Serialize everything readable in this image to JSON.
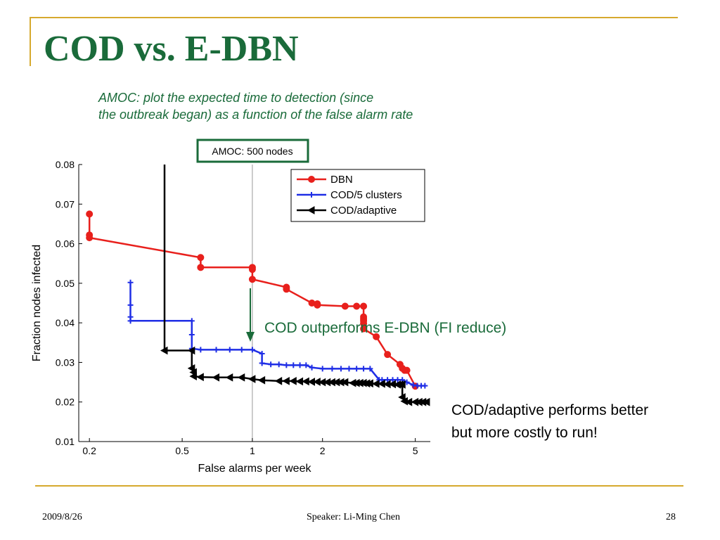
{
  "slide": {
    "title": "COD vs. E-DBN",
    "subtitle_line1": "AMOC: plot the expected time to detection (since",
    "subtitle_line2": "the outbreak began) as a function of the false alarm rate",
    "annotation_green": "COD outperforms E-DBN (FI reduce)",
    "annotation_black_line1": "COD/adaptive performs better",
    "annotation_black_line2": "but more costly to run!",
    "footer_date": "2009/8/26",
    "footer_speaker": "Speaker: Li-Ming Chen",
    "footer_page": "28"
  },
  "colors": {
    "title": "#1a6b3a",
    "rule": "#d6a92e",
    "dbn": "#e8201c",
    "cod5": "#1f2ee6",
    "adaptive": "#000000"
  },
  "chart_data": {
    "type": "line",
    "box_label": "AMOC: 500 nodes",
    "xlabel": "False alarms per week",
    "ylabel": "Fraction nodes infected",
    "x_scale": "log",
    "xlim": [
      0.18,
      5.8
    ],
    "ylim": [
      0.01,
      0.08
    ],
    "x_ticks": [
      0.2,
      0.5,
      1,
      2,
      5
    ],
    "x_tick_labels": [
      "0.2",
      "0.5",
      "1",
      "2",
      "5"
    ],
    "y_ticks": [
      0.01,
      0.02,
      0.03,
      0.04,
      0.05,
      0.06,
      0.07,
      0.08
    ],
    "y_tick_labels": [
      "0.01",
      "0.02",
      "0.03",
      "0.04",
      "0.05",
      "0.06",
      "0.07",
      "0.08"
    ],
    "reference_line_x": 1,
    "legend_position": "top-right",
    "series": [
      {
        "name": "DBN",
        "marker": "circle",
        "x": [
          0.2,
          0.2,
          0.2,
          0.6,
          0.6,
          1,
          1,
          1,
          1.4,
          1.4,
          1.8,
          1.9,
          1.9,
          2.5,
          2.8,
          3,
          3,
          3,
          3,
          3,
          3,
          3.4,
          3.8,
          4.3,
          4.4,
          4.5,
          4.6,
          5
        ],
        "y": [
          0.0675,
          0.0622,
          0.0615,
          0.0565,
          0.054,
          0.054,
          0.0535,
          0.051,
          0.049,
          0.0485,
          0.045,
          0.0448,
          0.0445,
          0.0442,
          0.0442,
          0.0442,
          0.0415,
          0.041,
          0.0405,
          0.0398,
          0.0385,
          0.0365,
          0.032,
          0.0295,
          0.0285,
          0.028,
          0.028,
          0.024
        ]
      },
      {
        "name": "COD/5 clusters",
        "marker": "plus",
        "x": [
          0.3,
          0.3,
          0.3,
          0.3,
          0.42,
          0.55,
          0.55,
          0.55,
          0.6,
          0.7,
          0.8,
          0.9,
          1,
          1.1,
          1.1,
          1.2,
          1.3,
          1.4,
          1.5,
          1.6,
          1.7,
          1.8,
          2,
          2.2,
          2.4,
          2.6,
          2.8,
          3,
          3.2,
          3.5,
          3.6,
          3.8,
          4,
          4.2,
          4.4,
          4.6,
          4.9,
          5.1,
          5.3,
          5.5
        ],
        "y": [
          0.0502,
          0.0445,
          0.0415,
          0.0405,
          0.0405,
          0.0405,
          0.037,
          0.0335,
          0.0332,
          0.0332,
          0.0332,
          0.0332,
          0.0332,
          0.0322,
          0.0298,
          0.0295,
          0.0295,
          0.0293,
          0.0293,
          0.0293,
          0.0293,
          0.0287,
          0.0284,
          0.0284,
          0.0284,
          0.0284,
          0.0284,
          0.0284,
          0.0284,
          0.0256,
          0.0256,
          0.0256,
          0.0256,
          0.0256,
          0.0256,
          0.025,
          0.0243,
          0.0241,
          0.0241,
          0.0241
        ]
      },
      {
        "name": "COD/adaptive",
        "marker": "triangle-left",
        "x": [
          0.42,
          0.42,
          0.55,
          0.55,
          0.56,
          0.56,
          0.6,
          0.7,
          0.8,
          0.9,
          1,
          1.1,
          1.3,
          1.4,
          1.5,
          1.6,
          1.7,
          1.8,
          1.9,
          2,
          2.1,
          2.2,
          2.3,
          2.4,
          2.5,
          2.7,
          2.8,
          2.9,
          3,
          3.1,
          3.2,
          3.4,
          3.6,
          3.8,
          4,
          4.2,
          4.3,
          4.4,
          4.4,
          4.5,
          4.7,
          5,
          5.2,
          5.4,
          5.6
        ],
        "y": [
          0.08,
          0.033,
          0.033,
          0.0285,
          0.0275,
          0.0265,
          0.0263,
          0.0262,
          0.0262,
          0.0262,
          0.0258,
          0.0255,
          0.0253,
          0.0253,
          0.0253,
          0.0252,
          0.0252,
          0.0251,
          0.0251,
          0.025,
          0.025,
          0.025,
          0.025,
          0.025,
          0.025,
          0.0248,
          0.0248,
          0.0248,
          0.0248,
          0.0247,
          0.0247,
          0.0246,
          0.0246,
          0.0245,
          0.0245,
          0.0244,
          0.0244,
          0.0244,
          0.0212,
          0.0202,
          0.02,
          0.02,
          0.02,
          0.02,
          0.02
        ]
      }
    ]
  }
}
